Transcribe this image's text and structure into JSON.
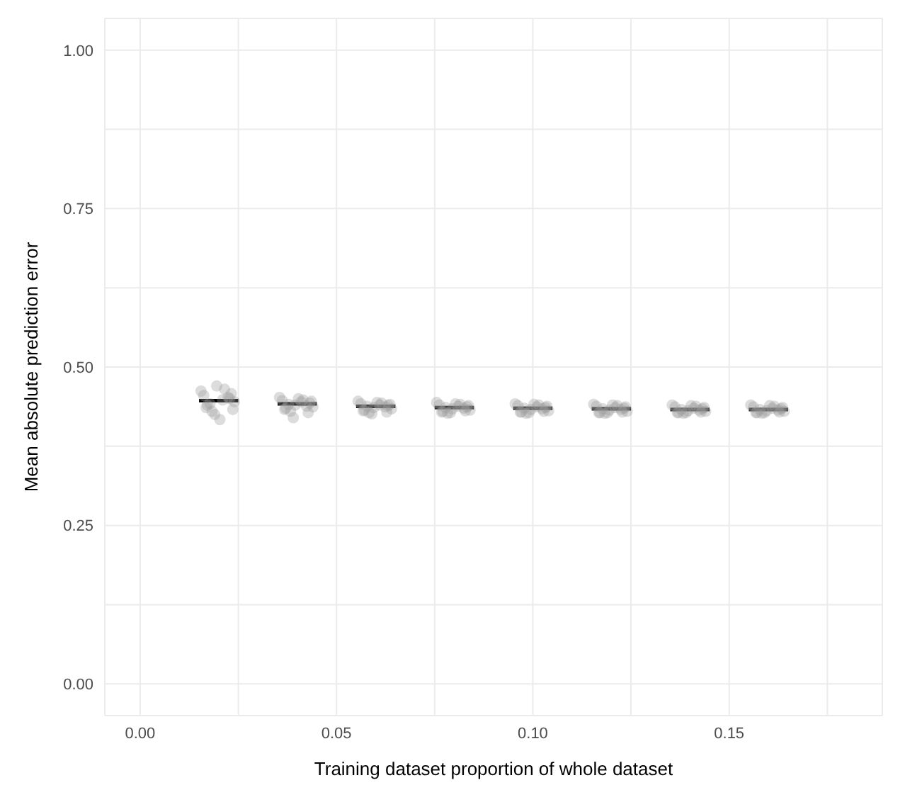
{
  "chart_data": {
    "type": "scatter",
    "xlabel": "Training dataset proportion of whole dataset",
    "ylabel": "Mean absolute prediction error",
    "xlim": [
      -0.009,
      0.189
    ],
    "xticks": [
      {
        "value": 0,
        "label": "0.00"
      },
      {
        "value": 0.025,
        "label": null
      },
      {
        "value": 0.05,
        "label": "0.05"
      },
      {
        "value": 0.075,
        "label": null
      },
      {
        "value": 0.1,
        "label": "0.10"
      },
      {
        "value": 0.125,
        "label": null
      },
      {
        "value": 0.15,
        "label": "0.15"
      },
      {
        "value": 0.175,
        "label": null
      }
    ],
    "ylim": [
      -0.05,
      1.05
    ],
    "yticks": [
      {
        "value": 0,
        "label": "0.00"
      },
      {
        "value": 0.125,
        "label": null
      },
      {
        "value": 0.25,
        "label": "0.25"
      },
      {
        "value": 0.375,
        "label": null
      },
      {
        "value": 0.5,
        "label": "0.50"
      },
      {
        "value": 0.625,
        "label": null
      },
      {
        "value": 0.75,
        "label": "0.75"
      },
      {
        "value": 0.875,
        "label": null
      },
      {
        "value": 1,
        "label": "1.00"
      }
    ],
    "grid": true,
    "marker": "circle",
    "series": [
      {
        "color": "#9a9a9a",
        "x": [
          0.0155,
          0.0162,
          0.0195,
          0.0171,
          0.0183,
          0.021,
          0.0224,
          0.019,
          0.0203,
          0.0232,
          0.024,
          0.0168,
          0.0215,
          0.0178,
          0.0228,
          0.0236,
          0.0355,
          0.0362,
          0.0395,
          0.0371,
          0.0383,
          0.041,
          0.0424,
          0.039,
          0.0403,
          0.0432,
          0.044,
          0.0368,
          0.0415,
          0.0378,
          0.0428,
          0.0436,
          0.0555,
          0.0562,
          0.0595,
          0.0571,
          0.0583,
          0.061,
          0.0624,
          0.059,
          0.0603,
          0.0632,
          0.064,
          0.0568,
          0.0615,
          0.0578,
          0.0628,
          0.0636,
          0.0755,
          0.0762,
          0.0795,
          0.0771,
          0.0783,
          0.081,
          0.0824,
          0.079,
          0.0803,
          0.0832,
          0.084,
          0.0768,
          0.0815,
          0.0778,
          0.0828,
          0.0836,
          0.0955,
          0.0962,
          0.0995,
          0.0971,
          0.0983,
          0.101,
          0.1024,
          0.099,
          0.1003,
          0.1032,
          0.104,
          0.0968,
          0.1015,
          0.0978,
          0.1028,
          0.1036,
          0.1155,
          0.1162,
          0.1195,
          0.1171,
          0.1183,
          0.121,
          0.1224,
          0.119,
          0.1203,
          0.1232,
          0.124,
          0.1168,
          0.1215,
          0.1178,
          0.1228,
          0.1236,
          0.1355,
          0.1362,
          0.1395,
          0.1371,
          0.1383,
          0.141,
          0.1424,
          0.139,
          0.1403,
          0.1432,
          0.144,
          0.1368,
          0.1415,
          0.1378,
          0.1428,
          0.1436,
          0.1555,
          0.1562,
          0.1595,
          0.1571,
          0.1583,
          0.161,
          0.1624,
          0.159,
          0.1603,
          0.1632,
          0.164,
          0.1568,
          0.1615,
          0.1578,
          0.1628,
          0.1636
        ],
        "values": [
          0.462,
          0.455,
          0.47,
          0.44,
          0.43,
          0.448,
          0.452,
          0.425,
          0.417,
          0.458,
          0.445,
          0.436,
          0.465,
          0.442,
          0.45,
          0.433,
          0.452,
          0.447,
          0.44,
          0.435,
          0.43,
          0.445,
          0.438,
          0.42,
          0.45,
          0.443,
          0.437,
          0.433,
          0.448,
          0.441,
          0.428,
          0.446,
          0.446,
          0.442,
          0.436,
          0.432,
          0.428,
          0.44,
          0.437,
          0.426,
          0.444,
          0.439,
          0.434,
          0.431,
          0.443,
          0.438,
          0.429,
          0.441,
          0.444,
          0.44,
          0.434,
          0.43,
          0.427,
          0.438,
          0.435,
          0.428,
          0.442,
          0.437,
          0.432,
          0.429,
          0.441,
          0.436,
          0.431,
          0.439,
          0.442,
          0.439,
          0.433,
          0.429,
          0.427,
          0.437,
          0.434,
          0.428,
          0.441,
          0.436,
          0.431,
          0.429,
          0.44,
          0.435,
          0.43,
          0.438,
          0.441,
          0.438,
          0.432,
          0.428,
          0.427,
          0.436,
          0.433,
          0.428,
          0.44,
          0.435,
          0.43,
          0.428,
          0.439,
          0.434,
          0.429,
          0.437,
          0.44,
          0.437,
          0.431,
          0.428,
          0.427,
          0.435,
          0.432,
          0.428,
          0.439,
          0.434,
          0.43,
          0.428,
          0.438,
          0.433,
          0.429,
          0.436,
          0.44,
          0.437,
          0.431,
          0.428,
          0.427,
          0.435,
          0.432,
          0.428,
          0.439,
          0.434,
          0.43,
          0.428,
          0.438,
          0.433,
          0.429,
          0.436
        ]
      },
      {
        "type": "line",
        "color": "#000000",
        "marker": "none",
        "x": [
          0.015,
          0.025,
          0.03,
          0.035,
          0.045,
          0.05,
          0.055,
          0.065,
          0.07,
          0.075,
          0.085,
          0.09,
          0.095,
          0.105,
          0.11,
          0.115,
          0.125,
          0.13,
          0.135,
          0.145,
          0.15,
          0.155,
          0.165
        ],
        "values": [
          0.447,
          0.447,
          null,
          0.442,
          0.442,
          null,
          0.438,
          0.438,
          null,
          0.436,
          0.436,
          null,
          0.435,
          0.435,
          null,
          0.434,
          0.434,
          null,
          0.433,
          0.433,
          null,
          0.433,
          0.433
        ]
      }
    ]
  }
}
